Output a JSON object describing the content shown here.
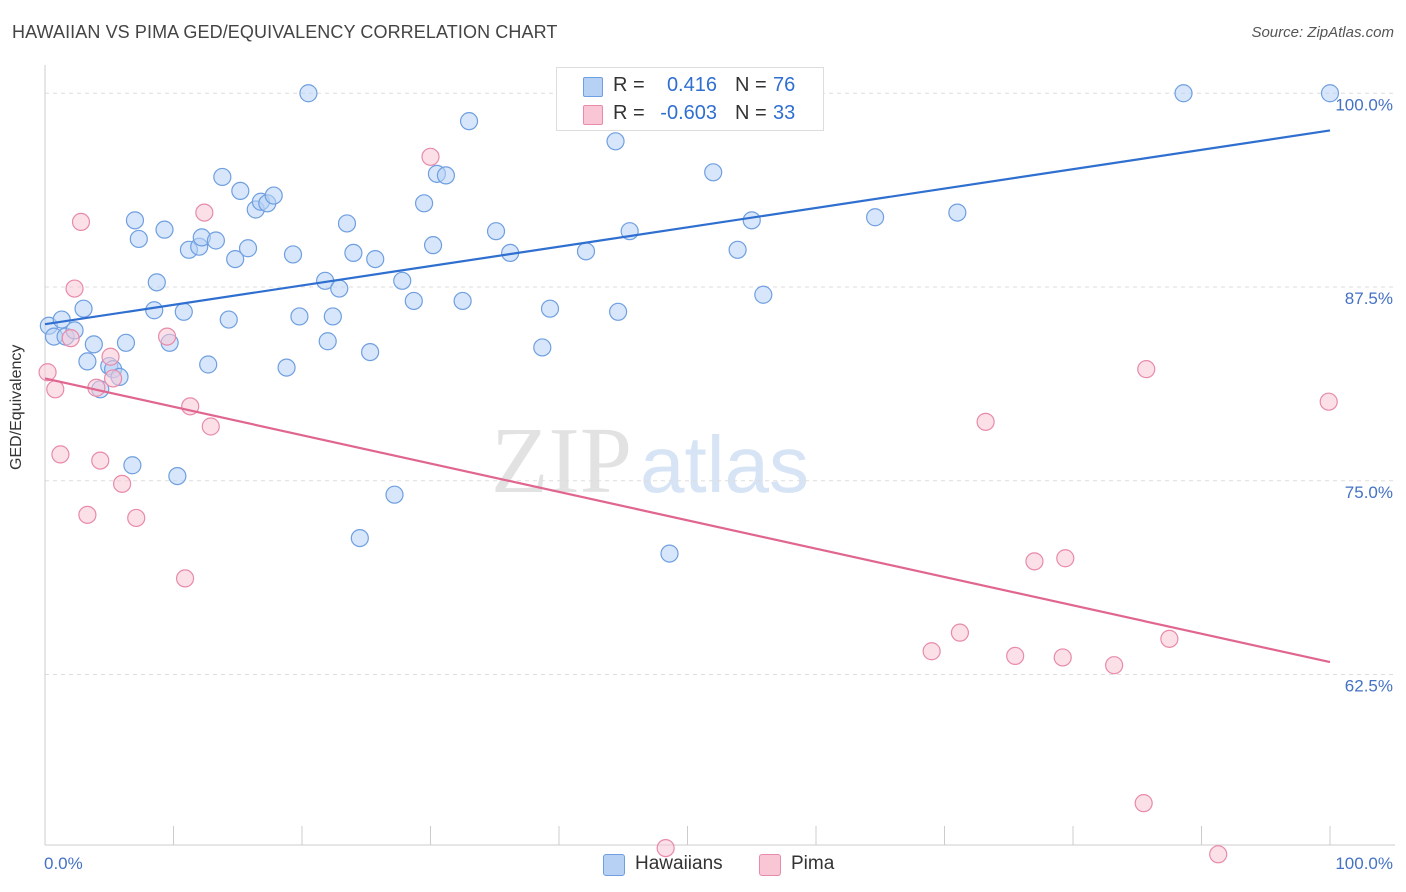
{
  "title": "HAWAIIAN VS PIMA GED/EQUIVALENCY CORRELATION CHART",
  "source": "Source: ZipAtlas.com",
  "watermark": {
    "zip": "ZIP",
    "atlas": "atlas"
  },
  "colors": {
    "hawaiians_fill": "#b7d1f5",
    "hawaiians_stroke": "#6f9fe0",
    "hawaiians_line": "#2f6fd0",
    "pima_fill": "#f9c6d6",
    "pima_stroke": "#e88aaa",
    "pima_line": "#e0668f",
    "tick_label": "#4472c4",
    "grid": "#dddddd"
  },
  "legend_top": [
    {
      "r_label": "R =",
      "r_value": "0.416",
      "n_label": "N =",
      "n_value": "76",
      "series": "Hawaiians"
    },
    {
      "r_label": "R =",
      "r_value": "-0.603",
      "n_label": "N =",
      "n_value": "33",
      "series": "Pima"
    }
  ],
  "legend_bottom": [
    "Hawaiians",
    "Pima"
  ],
  "chart_data": {
    "type": "scatter",
    "title": "HAWAIIAN VS PIMA GED/EQUIVALENCY CORRELATION CHART",
    "xlabel": "",
    "ylabel": "GED/Equivalency",
    "xlim": [
      0,
      100
    ],
    "ylim": [
      51.5,
      101.5
    ],
    "x_tick_labels": [
      "0.0%",
      "100.0%"
    ],
    "y_ticks": [
      62.5,
      75.0,
      87.5,
      100.0
    ],
    "y_tick_labels": [
      "62.5%",
      "75.0%",
      "87.5%",
      "100.0%"
    ],
    "grid": "horizontal dashed",
    "legend_position": "top-center and bottom",
    "series": [
      {
        "name": "Hawaiians",
        "r": 0.416,
        "n": 76,
        "trend": {
          "x": [
            0,
            100
          ],
          "y": [
            85.1,
            97.6
          ]
        },
        "points": [
          [
            0.3,
            85.0
          ],
          [
            0.7,
            84.3
          ],
          [
            1.3,
            85.4
          ],
          [
            1.6,
            84.3
          ],
          [
            2.3,
            84.7
          ],
          [
            3.0,
            86.1
          ],
          [
            3.3,
            82.7
          ],
          [
            3.8,
            83.8
          ],
          [
            4.3,
            80.9
          ],
          [
            5.0,
            82.4
          ],
          [
            5.3,
            82.2
          ],
          [
            5.8,
            81.7
          ],
          [
            6.3,
            83.9
          ],
          [
            6.8,
            76.0
          ],
          [
            7.0,
            91.8
          ],
          [
            7.3,
            90.6
          ],
          [
            8.5,
            86.0
          ],
          [
            8.7,
            87.8
          ],
          [
            9.3,
            91.2
          ],
          [
            9.7,
            83.9
          ],
          [
            10.3,
            75.3
          ],
          [
            10.8,
            85.9
          ],
          [
            11.2,
            89.9
          ],
          [
            12.0,
            90.1
          ],
          [
            12.2,
            90.7
          ],
          [
            12.7,
            82.5
          ],
          [
            13.3,
            90.5
          ],
          [
            13.8,
            94.6
          ],
          [
            14.3,
            85.4
          ],
          [
            14.8,
            89.3
          ],
          [
            15.2,
            93.7
          ],
          [
            15.8,
            90.0
          ],
          [
            16.4,
            92.5
          ],
          [
            16.8,
            93.0
          ],
          [
            17.3,
            92.9
          ],
          [
            17.8,
            93.4
          ],
          [
            18.8,
            82.3
          ],
          [
            19.3,
            89.6
          ],
          [
            19.8,
            85.6
          ],
          [
            20.5,
            100.0
          ],
          [
            21.8,
            87.9
          ],
          [
            22.0,
            84.0
          ],
          [
            22.4,
            85.6
          ],
          [
            22.9,
            87.4
          ],
          [
            23.5,
            91.6
          ],
          [
            24.0,
            89.7
          ],
          [
            24.5,
            71.3
          ],
          [
            25.3,
            83.3
          ],
          [
            25.7,
            89.3
          ],
          [
            27.2,
            74.1
          ],
          [
            27.8,
            87.9
          ],
          [
            28.7,
            86.6
          ],
          [
            29.5,
            92.9
          ],
          [
            30.2,
            90.2
          ],
          [
            30.5,
            94.8
          ],
          [
            31.2,
            94.7
          ],
          [
            32.5,
            86.6
          ],
          [
            33.0,
            98.2
          ],
          [
            35.1,
            91.1
          ],
          [
            36.2,
            89.7
          ],
          [
            38.7,
            83.6
          ],
          [
            39.3,
            86.1
          ],
          [
            42.1,
            89.8
          ],
          [
            44.4,
            96.9
          ],
          [
            44.6,
            85.9
          ],
          [
            45.5,
            91.1
          ],
          [
            48.6,
            70.3
          ],
          [
            50.0,
            100.0
          ],
          [
            52.0,
            94.9
          ],
          [
            53.9,
            89.9
          ],
          [
            55.0,
            91.8
          ],
          [
            55.9,
            87.0
          ],
          [
            64.6,
            92.0
          ],
          [
            71.0,
            92.3
          ],
          [
            88.6,
            100.0
          ],
          [
            100.0,
            100.0
          ]
        ]
      },
      {
        "name": "Pima",
        "r": -0.603,
        "n": 33,
        "trend": {
          "x": [
            0,
            100
          ],
          "y": [
            81.6,
            63.3
          ]
        },
        "points": [
          [
            0.2,
            82.0
          ],
          [
            0.8,
            80.9
          ],
          [
            1.2,
            76.7
          ],
          [
            2.0,
            84.2
          ],
          [
            2.3,
            87.4
          ],
          [
            2.8,
            91.7
          ],
          [
            3.3,
            72.8
          ],
          [
            4.0,
            81.0
          ],
          [
            4.3,
            76.3
          ],
          [
            5.1,
            83.0
          ],
          [
            5.3,
            81.6
          ],
          [
            6.0,
            74.8
          ],
          [
            7.1,
            72.6
          ],
          [
            9.5,
            84.3
          ],
          [
            10.9,
            68.7
          ],
          [
            11.3,
            79.8
          ],
          [
            12.4,
            92.3
          ],
          [
            12.9,
            78.5
          ],
          [
            30.0,
            95.9
          ],
          [
            48.3,
            51.3
          ],
          [
            69.0,
            64.0
          ],
          [
            71.2,
            65.2
          ],
          [
            73.2,
            78.8
          ],
          [
            75.5,
            63.7
          ],
          [
            77.0,
            69.8
          ],
          [
            79.2,
            63.6
          ],
          [
            79.4,
            70.0
          ],
          [
            83.2,
            63.1
          ],
          [
            85.5,
            54.2
          ],
          [
            85.7,
            82.2
          ],
          [
            87.5,
            64.8
          ],
          [
            91.3,
            50.9
          ],
          [
            99.9,
            80.1
          ]
        ]
      }
    ]
  }
}
